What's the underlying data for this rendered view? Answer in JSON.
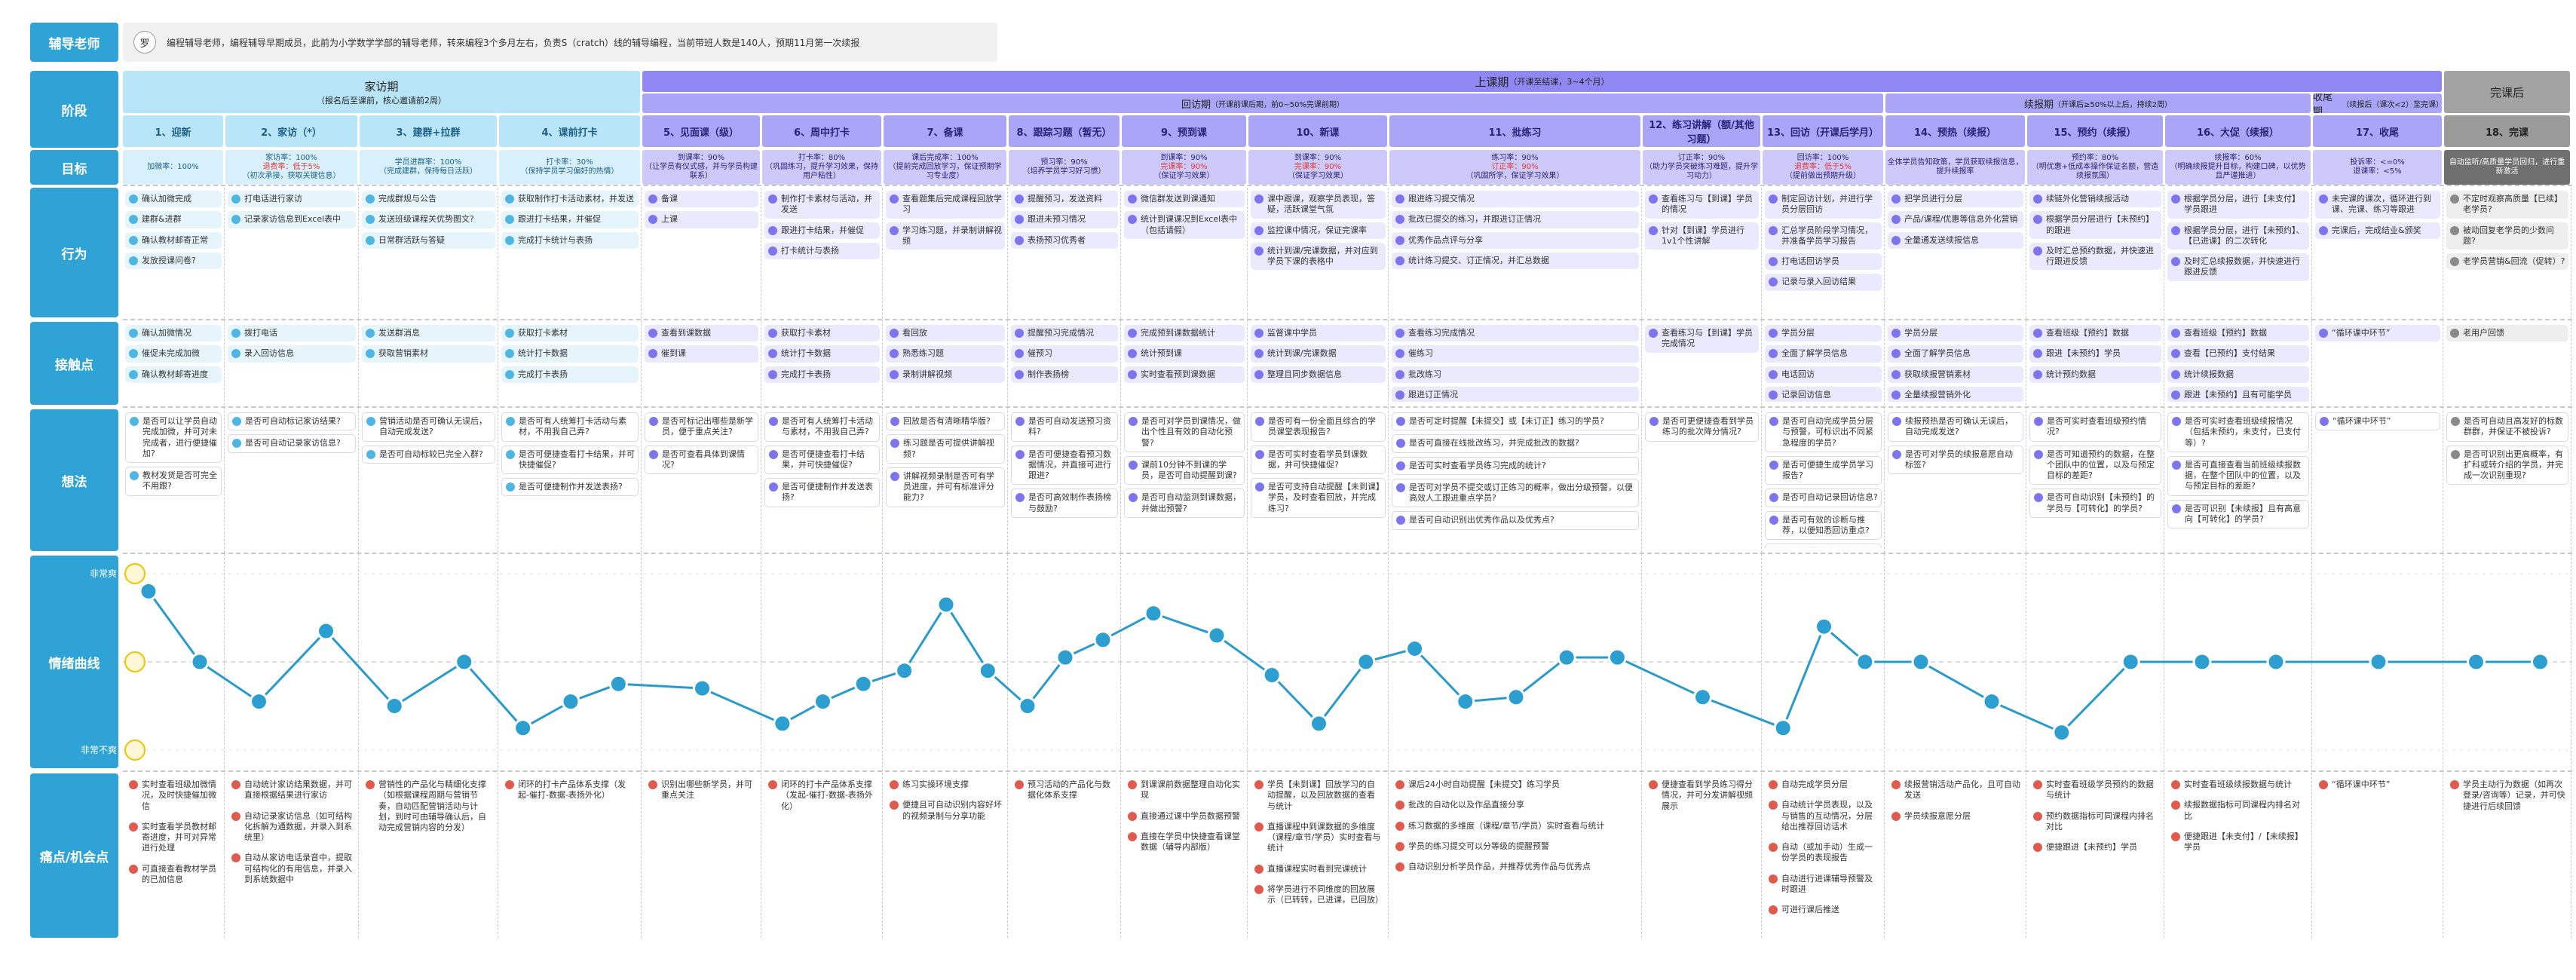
{
  "persona": {
    "avatar": "罗",
    "description": "编程辅导老师，编程辅导早期成员，此前为小学数学学部的辅导老师，转来编程3个多月左右，负责S（cratch）线的辅导编程，当前带班人数是140人，预期11月第一次续报"
  },
  "row_labels": {
    "role": "辅导老师",
    "stage": "阶段",
    "goal": "目标",
    "behavior": "行为",
    "touchpoint": "接触点",
    "thought": "想法",
    "emotion": "情绪曲线",
    "pain": "痛点/机会点"
  },
  "emotion_axis": {
    "ylim": [
      -2,
      2
    ],
    "yticks": [
      {
        "value": 2,
        "label": "非常爽"
      },
      {
        "value": -2,
        "label": "非常不爽"
      }
    ]
  },
  "phases": [
    {
      "name": "家访期",
      "note": "（报名后至课前，核心邀请前2周）",
      "steps": [
        {
          "name": "1、迎新",
          "goals": [
            "加微率：100%"
          ],
          "behaviors": [
            "确认加微完成",
            "建群&进群",
            "确认教材邮寄正常",
            "发放授课问卷?"
          ],
          "touchpoints": [
            "确认加微情况",
            "催促未完成加微",
            "确认教材邮寄进度"
          ],
          "thoughts": [
            "是否可以让学员自动完成加微，并可对未完成者，进行便捷催加?",
            "教材发货是否可完全不用跟?"
          ],
          "emotion": [
            1.6,
            0
          ],
          "pains": [
            "实时查看班级加微情况，及时快捷催加微信",
            "实时查看学员教材邮寄进度，并可对异常进行处理",
            "可直接查看教材学员的已加信息"
          ]
        },
        {
          "name": "2、家访（*）",
          "goals": [
            "家访率：100%",
            {
              "text": "退费率：低于5%",
              "color": "#e53935"
            },
            "（初次承接，获取关键信息）"
          ],
          "behaviors": [
            "打电话进行家访",
            "记录家访信息到Excel表中"
          ],
          "touchpoints": [
            "拨打电话",
            "录入回访信息"
          ],
          "thoughts": [
            "是否可自动标记家访结果?",
            "是否可自动记录家访信息?"
          ],
          "emotion": [
            -0.9,
            0.7
          ],
          "pains": [
            "自动统计家访结果数据，并可直接根据结果进行家访",
            "自动记录家访信息（如可结构化拆解为通数据，并录入到系统里）",
            "自动从家访电话录音中，提取可结构化的有用信息，并录入到系统数据中"
          ]
        },
        {
          "name": "3、建群+拉群",
          "goals": [
            "学员进群率：100%",
            "（完成建群，保持每日活跃）"
          ],
          "behaviors": [
            "完成群规与公告",
            "发送班级课程关优势图文?",
            "日常群活跃与答疑"
          ],
          "touchpoints": [
            "发送群消息",
            "获取营销素材"
          ],
          "thoughts": [
            "营销活动是否可确认无误后，自动完成发送?",
            "是否可自动标较已完全入群?"
          ],
          "emotion": [
            -1,
            0
          ],
          "pains": [
            "营销性的产品化与精细化支撑（如根据课程周期与营销节奏，自动匹配营销活动与计划，到时可由辅导确认后，自动完成营销内容的分发）"
          ]
        },
        {
          "name": "4、课前打卡",
          "goals": [
            "打卡率：30%",
            "（保持学员学习偏好的热情）"
          ],
          "behaviors": [
            "获取制作打卡活动素材，并发送",
            "跟进打卡结果，并催促",
            "完成打卡统计与表扬"
          ],
          "touchpoints": [
            "获取打卡素材",
            "统计打卡数据",
            "完成打卡表扬"
          ],
          "thoughts": [
            "是否可有人统筹打卡活动与素材，不用我自己弄?",
            "是否可便捷查看打卡结果，并可快捷催促?",
            "是否可便捷制作并发送表扬?"
          ],
          "emotion": [
            -1.5,
            -0.9,
            -0.5
          ],
          "pains": [
            "闭环的打卡产品体系支撑（发起-催打-数据-表扬外化）"
          ]
        }
      ]
    },
    {
      "name": "上课期",
      "note": "（开课至结课，3~4个月）",
      "subphases": [
        {
          "name": "回访期",
          "note": "（开课前课后期，前0~50%完课前期）",
          "steps": [
            {
              "name": "5、见面课（级）",
              "goals": [
                "到课率：90%",
                "（让学员有仪式感，并与学员构建联系）"
              ],
              "behaviors": [
                "备课",
                "上课"
              ],
              "touchpoints": [
                "查看到课数据",
                "催到课"
              ],
              "thoughts": [
                "是否可标记出哪些是新学员，便于重点关注?",
                "是否可查看具体到课情况?"
              ],
              "emotion": [
                -0.6
              ],
              "pains": [
                "识别出哪些新学员，并可重点关注"
              ]
            },
            {
              "name": "6、周中打卡",
              "goals": [
                "打卡率：80%",
                "（巩固练习，提升学习效果，保持用户粘性）"
              ],
              "behaviors": [
                "制作打卡素材与活动，并发送",
                "跟进打卡结果，并催促",
                "打卡统计与表扬"
              ],
              "touchpoints": [
                "获取打卡素材",
                "统计打卡数据",
                "完成打卡表扬"
              ],
              "thoughts": [
                "是否可有人统筹打卡活动与素材，不用我自己弄?",
                "是否可便捷查看打卡结果，并可快捷催促?",
                "是否可便捷制作并发送表扬?"
              ],
              "emotion": [
                -1.4,
                -0.9,
                -0.5
              ],
              "pains": [
                "闭环的打卡产品体系支撑（发起-催打-数据-表扬外化）"
              ]
            },
            {
              "name": "7、备课",
              "goals": [
                "课后完成率：100%",
                "（提前完成回放学习，保证预期学习专业度）"
              ],
              "behaviors": [
                "查看题集后完成课程回放学习",
                "学习练习题，并录制讲解视频"
              ],
              "touchpoints": [
                "看回放",
                "熟悉练习题",
                "录制讲解视频"
              ],
              "thoughts": [
                "回放是否有清晰精华版?",
                "练习题是否可提供讲解视频?",
                "讲解视频录制是否可有学员进度，并可有标准评分能力?"
              ],
              "emotion": [
                -0.2,
                1.3,
                -0.2
              ],
              "pains": [
                "练习实操环境支撑",
                "便捷且可自动识别内容好坏的视频录制与分享功能"
              ]
            },
            {
              "name": "8、跟踪习题（暂无）",
              "goals": [
                "预习率：90%",
                "（培养学员学习好习惯）"
              ],
              "behaviors": [
                "提醒预习，发送资料",
                "跟进未预习情况",
                "表扬预习优秀者"
              ],
              "touchpoints": [
                "提醒预习完成情况",
                "催预习",
                "制作表扬榜"
              ],
              "thoughts": [
                "是否可自动发送预习资料?",
                "是否可便捷查看预习数据情况，并直接可进行跟进?",
                "是否可高效制作表扬榜与鼓励?"
              ],
              "emotion": [
                -1,
                0.1,
                0.5
              ],
              "pains": [
                "预习活动的产品化与数据化体系支撑"
              ]
            },
            {
              "name": "9、预到课",
              "goals": [
                "到课率：90%",
                {
                  "text": "完课率：90%",
                  "color": "#e53935"
                },
                "（保证学习效果）"
              ],
              "behaviors": [
                "微信群发送到课通知",
                "统计到课课况到Excel表中（包括请假）"
              ],
              "touchpoints": [
                "完成预到课数据统计",
                "统计预到课",
                "实时查看预到课数据"
              ],
              "thoughts": [
                "是否可对学员到课情况，做出个性且有效的自动化预警?",
                "课前10分钟不到课的学员，是否可自动提醒到课?",
                "是否可自动监测到课数据，并做出预警?"
              ],
              "emotion": [
                1.1,
                0.6
              ],
              "pains": [
                "到课课前数据整理自动化实现",
                "直接通过课中学员数据预警",
                "直接在学员中快捷查看课堂数据（辅导内部版）"
              ]
            },
            {
              "name": "10、新课",
              "goals": [
                "到课率：90%",
                {
                  "text": "完课率：90%",
                  "color": "#e53935"
                },
                "（保证学习效果）"
              ],
              "behaviors": [
                "课中跟课，观察学员表现，答疑，活跃课堂气氛",
                "监控课中情况，保证完课率",
                "统计到课/完课数据，并对应到学员下课的表格中"
              ],
              "touchpoints": [
                "监督课中学员",
                "统计到课/完课数据",
                "整理且同步数据信息"
              ],
              "thoughts": [
                "是否可有一份全面且综合的学员课堂表现报告?",
                "是否可实时查看学员到课数据，并可快捷催促?",
                "是否可支持自动提醒【未到课】学员，及时查看回放，并完成练习?"
              ],
              "emotion": [
                -0.3,
                -1.4,
                0
              ],
              "pains": [
                "学员【未到课】回放学习的自动提醒，以及回放数据的查看与统计",
                "直播课程中到课数据的多维度（课程/章节/学员）实时查看与统计",
                "直播课程实时看到完课统计",
                "将学员进行不同维度的回放展示（已转转，已进课，已回放）"
              ]
            },
            {
              "name": "11、批练习",
              "goals": [
                "练习率：90%",
                {
                  "text": "订正率：90%",
                  "color": "#e53935"
                },
                "（巩固所学，保证学习效果）"
              ],
              "behaviors": [
                "跟进练习提交情况",
                "批改已提交的练习，并跟进订正情况",
                "优秀作品点评与分享",
                "统计练习提交、订正情况，并汇总数据"
              ],
              "touchpoints": [
                "查看练习完成情况",
                "催练习",
                "批改练习",
                "跟进订正情况",
                "完成点评分享",
                "统计数据并同步上报"
              ],
              "thoughts": [
                "是否可定时提醒【未提交】或【未订正】练习的学员?",
                "是否可直接在线批改练习，并完成批改的数据?",
                "是否可实时查看学员练习完成的统计?",
                "是否可对学员不提交或订正练习的概率，做出分级预警，以便高效人工跟进重点学员?",
                "是否可自动识别出优秀作品以及优秀点?"
              ],
              "emotion": [
                0.3,
                -0.9,
                -0.8,
                0.1,
                0.1
              ],
              "pains": [
                "课后24小时自动提醒【未提交】练习学员",
                "批改的自动化以及作品直接分享",
                "练习数据的多维度（课程/章节/学员）实时查看与统计",
                "学员的练习提交可以分等级的提醒预警",
                "自动识别分析学员作品，并推荐优秀作品与优秀点"
              ]
            },
            {
              "name": "12、练习讲解（额/其他习题）",
              "goals": [
                "订正率：90%",
                "（助力学员突破练习难题，提升学习动力）"
              ],
              "behaviors": [
                "查看练习与【到课】学员的情况",
                "针对【到课】学员进行1v1个性讲解"
              ],
              "touchpoints": [
                "查看练习与【到课】学员完成情况"
              ],
              "thoughts": [
                "是否可更便捷查看到学员练习的批次降分情况?"
              ],
              "emotion": [
                -0.8
              ],
              "pains": [
                "便捷查看到学员练习得分情况，并可分发讲解视频展示"
              ]
            },
            {
              "name": "13、回访（开课后学月）",
              "goals": [
                "回访率：100%",
                {
                  "text": "退费率：低于5%",
                  "color": "#e53935"
                },
                "（提前做出预期升级）"
              ],
              "behaviors": [
                "制定回访计划，并进行学员分层回访",
                "汇总学员阶段学习情况，并准备学员学习报告",
                "打电话回访学员",
                "记录与录入回访结果"
              ],
              "touchpoints": [
                "学员分层",
                "全面了解学员信息",
                "电话回访",
                "记录回访信息",
                "营销转化"
              ],
              "thoughts": [
                "是否可自动完成学员分层与预警，可标识出不同紧急程度的学员?",
                "是否可便捷生成学员学习报告?",
                "是否可自动记录回访信息?",
                "是否可有效的诊断与推荐，以便知悉回访重点?",
                "是否推断通过进行，并及时提醒?"
              ],
              "emotion": [
                -1.5,
                0.8,
                0
              ],
              "pains": [
                "自动完成学员分层",
                "自动统计学员表现，以及与销售的互动情况，分层给出推荐回访话术",
                "自动（或加手动）生成一份学员的表现报告",
                "自动进行进课辅导预警及时跟进",
                "可进行课后推送"
              ]
            }
          ]
        },
        {
          "name": "续报期",
          "note": "（开课后≥50%以上后，持续2周）",
          "steps": [
            {
              "name": "14、预热（续报）",
              "goals": [
                "全体学员告知政策，学员获取续报信息，提升续报率"
              ],
              "behaviors": [
                "把学员进行分层",
                "产品/课程/优惠等信息外化营销",
                "全量通发送续报信息"
              ],
              "touchpoints": [
                "学员分层",
                "全面了解学员信息",
                "获取续报营销素材",
                "全量续报营销外化"
              ],
              "thoughts": [
                "续报预热是否可确认无误后，自动完成发送?",
                "是否可对学员的续报意愿自动标签?"
              ],
              "emotion": [
                0,
                -0.9
              ],
              "pains": [
                "续报营销活动产品化，且可自动发送",
                "学员续报意愿分层"
              ]
            },
            {
              "name": "15、预约（续报）",
              "goals": [
                "预约率：80%",
                "（明优惠+低成本操作保证名额，营造续报氛围）"
              ],
              "behaviors": [
                "续链外化营销续报活动",
                "根据学员分层进行【未预约】的跟进",
                "及时汇总预约数据，并快速进行跟进反馈"
              ],
              "touchpoints": [
                "查看班级【预约】数据",
                "跟进【未预约】学员",
                "统计预约数据"
              ],
              "thoughts": [
                "是否可实时查看班级预约情况?",
                "是否可知道预约的数据，在整个团队中的位置，以及与预定目标的差距?",
                "是否可自动识别【未预约】的学员与【可转化】的学员?"
              ],
              "emotion": [
                -1.6,
                0
              ],
              "pains": [
                "实时查看班级学员预约的数据与统计",
                "预约数据指标可同课程内排名对比",
                "便捷跟进【未预约】学员"
              ]
            },
            {
              "name": "16、大促（续报）",
              "goals": [
                "续报率：60%",
                "（明确续报提升目标，构建口碑，以优势且严谨推进）"
              ],
              "behaviors": [
                "根据学员分层，进行【未支付】学员跟进",
                "根据学员分层，进行【未预约】、【已进课】的二次转化",
                "及时汇总续报数据，并快速进行跟进反馈"
              ],
              "touchpoints": [
                "查看班级【预约】数据",
                "查看【已预约】支付结果",
                "统计续报数据",
                "跟进【未预约】且有可能学员"
              ],
              "thoughts": [
                "是否可实时查看班级续报情况（包括未预约，未支付，已支付等）?",
                "是否可直接查看当前班级续报数据，在整个团队中的位置，以及与预定目标的差距?",
                "是否可识别【未续报】且有高意向【可转化】的学员?"
              ],
              "emotion": [
                0,
                0
              ],
              "pains": [
                "实时查看班级续报数据与统计",
                "续报数据指标可同课程内排名对比",
                "便捷跟进【未支付】/【未续报】学员"
              ]
            }
          ]
        },
        {
          "name": "收尾期",
          "note": "（续报后（课次<2）至完课）",
          "steps": [
            {
              "name": "17、收尾",
              "goals": [
                "投诉率：<=0%",
                "退课率：<5%"
              ],
              "behaviors": [
                "未完课的课次，循环进行到课、完课、练习等跟进",
                "完课后，完成结业&颁奖"
              ],
              "touchpoints": [
                "“循环课中环节”"
              ],
              "thoughts": [
                "“循环课中环节”"
              ],
              "emotion": [
                0
              ],
              "pains": [
                "“循环课中环节”"
              ]
            }
          ]
        }
      ]
    },
    {
      "name": "完课后",
      "steps": [
        {
          "name": "18、完课",
          "goals": [
            "自动监听/高质量学员回归，进行重新激活"
          ],
          "behaviors": [
            "不定时观察高质量【已续】老学员?",
            "被动回复老学员的少数问题?",
            "老学员营销&回流（促转）?"
          ],
          "touchpoints": [
            "老用户回馈"
          ],
          "thoughts": [
            "是否可自动且高发好的标数群群，并保证不被投诉?",
            "是否可识别出更高概率，有扩科或转介绍的学员，并完成一次识别重现?"
          ],
          "emotion": [
            0,
            0
          ],
          "pains": [
            "学员主动行为数据（如再次登录/咨询等）记录，并可快捷进行后续回馈"
          ]
        }
      ]
    }
  ]
}
